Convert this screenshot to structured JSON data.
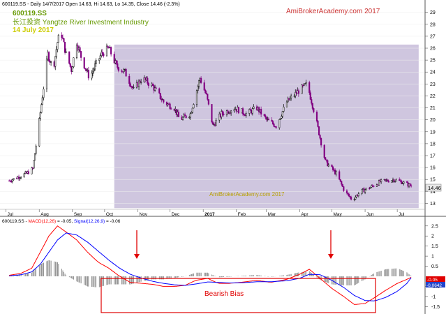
{
  "header": {
    "info": "600119.SS - Daily 14/7/2017 Open 14.63, Hi 14.63, Lo 14.35, Close 14.46 (-2.3%)",
    "symbol": "600119.SS",
    "company": "长江投资 Yangtze River Investment Industry",
    "date": "14 July 2017",
    "watermark_top": "AmiBrokerAcademy.com  2017",
    "watermark_mid": "AmiBrokerAcademy.com  2017"
  },
  "price_axis": {
    "ticks": [
      "29",
      "28",
      "27",
      "26",
      "25",
      "24",
      "23",
      "22",
      "21",
      "20",
      "19",
      "18",
      "17",
      "16",
      "15",
      "14",
      "13"
    ],
    "last_value": "14.46"
  },
  "x_axis": {
    "labels": [
      "Jul",
      "Aug",
      "Sep",
      "Oct",
      "Nov",
      "Dec",
      "2017",
      "Feb",
      "Mar",
      "Apr",
      "May",
      "Jun",
      "Jul"
    ]
  },
  "macd": {
    "header_prefix": "600119.SS - ",
    "macd_label": "MACD(12,26)",
    "macd_value": " = -0.05, ",
    "signal_label": "Signal(12,26,9)",
    "signal_value": " = -0.06",
    "ticks": [
      "2.5",
      "2",
      "1.5",
      "1",
      "0.5",
      "-0.5",
      "-1",
      "-1.5"
    ],
    "last_macd": "-0.05",
    "last_signal": "-0.0642",
    "annotation": "Bearish Bias"
  },
  "colors": {
    "up": "#000000",
    "down": "#800080",
    "shade": "#cfc6df",
    "macd_line": "#ff0000",
    "signal_line": "#0000ff",
    "accent": "#e00000",
    "title_green": "#669900",
    "date_yellow": "#cccc00",
    "watermark": "#cc3333",
    "watermark_mid": "#b8a000"
  },
  "chart_data": {
    "type": "candlestick",
    "price_range": [
      12.5,
      29.8
    ],
    "price_points": [
      [
        "2016-07-04",
        14.9
      ],
      [
        "2016-07-12",
        15.2
      ],
      [
        "2016-07-20",
        15.5
      ],
      [
        "2016-07-26",
        15.9
      ],
      [
        "2016-07-30",
        18.5
      ],
      [
        "2016-08-04",
        22.0
      ],
      [
        "2016-08-09",
        25.5
      ],
      [
        "2016-08-14",
        24.2
      ],
      [
        "2016-08-18",
        26.5
      ],
      [
        "2016-08-21",
        27.5
      ],
      [
        "2016-08-26",
        25.5
      ],
      [
        "2016-08-31",
        24.2
      ],
      [
        "2016-09-05",
        26.5
      ],
      [
        "2016-09-10",
        25.0
      ],
      [
        "2016-09-17",
        23.5
      ],
      [
        "2016-09-22",
        24.5
      ],
      [
        "2016-09-28",
        25.5
      ],
      [
        "2016-10-05",
        26.0
      ],
      [
        "2016-10-12",
        24.5
      ],
      [
        "2016-10-20",
        24.0
      ],
      [
        "2016-10-28",
        22.5
      ],
      [
        "2016-11-05",
        23.5
      ],
      [
        "2016-11-15",
        22.8
      ],
      [
        "2016-11-25",
        21.5
      ],
      [
        "2016-12-05",
        21.0
      ],
      [
        "2016-12-10",
        20.0
      ],
      [
        "2016-12-20",
        20.5
      ],
      [
        "2016-12-29",
        23.5
      ],
      [
        "2017-01-04",
        22.0
      ],
      [
        "2017-01-10",
        19.5
      ],
      [
        "2017-01-18",
        20.5
      ],
      [
        "2017-01-30",
        21.0
      ],
      [
        "2017-02-10",
        20.5
      ],
      [
        "2017-02-20",
        21.0
      ],
      [
        "2017-03-01",
        20.0
      ],
      [
        "2017-03-10",
        19.5
      ],
      [
        "2017-03-20",
        21.5
      ],
      [
        "2017-04-01",
        22.5
      ],
      [
        "2017-04-08",
        23.0
      ],
      [
        "2017-04-15",
        20.5
      ],
      [
        "2017-04-25",
        16.5
      ],
      [
        "2017-05-05",
        15.5
      ],
      [
        "2017-05-13",
        14.0
      ],
      [
        "2017-05-20",
        13.3
      ],
      [
        "2017-05-28",
        14.0
      ],
      [
        "2017-06-05",
        14.3
      ],
      [
        "2017-06-15",
        14.8
      ],
      [
        "2017-06-28",
        15.0
      ],
      [
        "2017-07-05",
        14.8
      ],
      [
        "2017-07-14",
        14.46
      ]
    ],
    "shaded_region": {
      "start": "2016-10-10",
      "end": "2017-07-21",
      "price_range": [
        12.6,
        26.3
      ]
    },
    "macd_range": [
      -1.8,
      2.7
    ],
    "macd_points": [
      [
        "2016-07-04",
        0.05
      ],
      [
        "2016-07-15",
        0.15
      ],
      [
        "2016-07-25",
        0.4
      ],
      [
        "2016-08-02",
        1.2
      ],
      [
        "2016-08-10",
        2.0
      ],
      [
        "2016-08-18",
        2.5
      ],
      [
        "2016-08-26",
        2.2
      ],
      [
        "2016-09-05",
        1.8
      ],
      [
        "2016-09-15",
        1.2
      ],
      [
        "2016-09-25",
        0.7
      ],
      [
        "2016-10-05",
        0.4
      ],
      [
        "2016-10-15",
        0.0
      ],
      [
        "2016-10-25",
        -0.3
      ],
      [
        "2016-11-05",
        -0.35
      ],
      [
        "2016-11-15",
        -0.4
      ],
      [
        "2016-11-25",
        -0.5
      ],
      [
        "2016-12-05",
        -0.5
      ],
      [
        "2016-12-15",
        -0.45
      ],
      [
        "2016-12-25",
        -0.2
      ],
      [
        "2017-01-05",
        -0.1
      ],
      [
        "2017-01-15",
        -0.35
      ],
      [
        "2017-01-25",
        -0.35
      ],
      [
        "2017-02-05",
        -0.3
      ],
      [
        "2017-02-20",
        -0.2
      ],
      [
        "2017-03-05",
        -0.3
      ],
      [
        "2017-03-20",
        -0.15
      ],
      [
        "2017-04-01",
        0.1
      ],
      [
        "2017-04-10",
        0.35
      ],
      [
        "2017-04-20",
        -0.1
      ],
      [
        "2017-05-01",
        -0.6
      ],
      [
        "2017-05-12",
        -1.0
      ],
      [
        "2017-05-22",
        -1.4
      ],
      [
        "2017-06-01",
        -1.35
      ],
      [
        "2017-06-10",
        -1.05
      ],
      [
        "2017-06-20",
        -0.7
      ],
      [
        "2017-07-01",
        -0.35
      ],
      [
        "2017-07-10",
        -0.15
      ],
      [
        "2017-07-14",
        -0.05
      ]
    ],
    "signal_points": [
      [
        "2016-07-04",
        0.02
      ],
      [
        "2016-07-15",
        0.08
      ],
      [
        "2016-07-25",
        0.22
      ],
      [
        "2016-08-02",
        0.6
      ],
      [
        "2016-08-10",
        1.2
      ],
      [
        "2016-08-18",
        1.8
      ],
      [
        "2016-08-26",
        2.15
      ],
      [
        "2016-09-05",
        2.05
      ],
      [
        "2016-09-15",
        1.7
      ],
      [
        "2016-09-25",
        1.25
      ],
      [
        "2016-10-05",
        0.8
      ],
      [
        "2016-10-15",
        0.4
      ],
      [
        "2016-10-25",
        0.1
      ],
      [
        "2016-11-05",
        -0.1
      ],
      [
        "2016-11-15",
        -0.25
      ],
      [
        "2016-11-25",
        -0.35
      ],
      [
        "2016-12-05",
        -0.42
      ],
      [
        "2016-12-15",
        -0.45
      ],
      [
        "2016-12-25",
        -0.38
      ],
      [
        "2017-01-05",
        -0.28
      ],
      [
        "2017-01-15",
        -0.3
      ],
      [
        "2017-01-25",
        -0.33
      ],
      [
        "2017-02-05",
        -0.32
      ],
      [
        "2017-02-20",
        -0.27
      ],
      [
        "2017-03-05",
        -0.27
      ],
      [
        "2017-03-20",
        -0.22
      ],
      [
        "2017-04-01",
        -0.1
      ],
      [
        "2017-04-10",
        0.1
      ],
      [
        "2017-04-20",
        0.08
      ],
      [
        "2017-05-01",
        -0.2
      ],
      [
        "2017-05-12",
        -0.55
      ],
      [
        "2017-05-22",
        -0.95
      ],
      [
        "2017-06-01",
        -1.2
      ],
      [
        "2017-06-10",
        -1.22
      ],
      [
        "2017-06-20",
        -1.05
      ],
      [
        "2017-07-01",
        -0.75
      ],
      [
        "2017-07-10",
        -0.35
      ],
      [
        "2017-07-14",
        -0.0642
      ]
    ]
  }
}
